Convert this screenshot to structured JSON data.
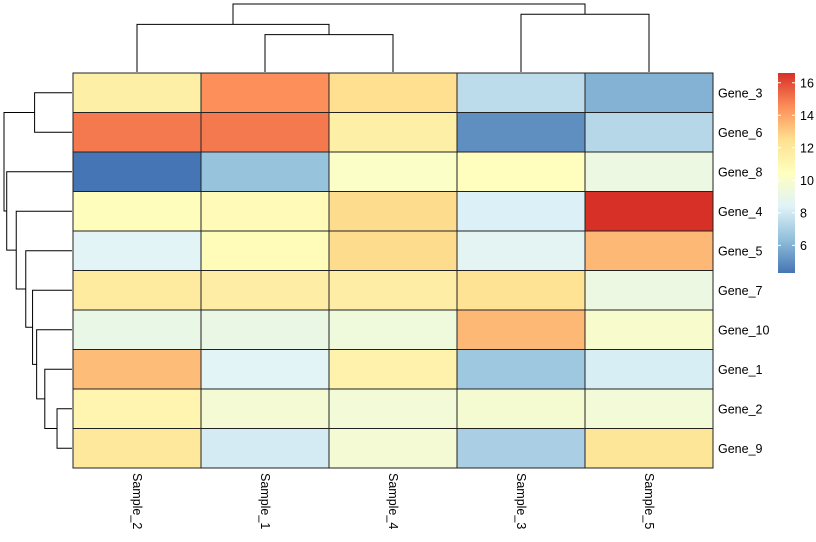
{
  "chart_data": {
    "type": "heatmap",
    "title": "",
    "rows": [
      "Gene_3",
      "Gene_6",
      "Gene_8",
      "Gene_4",
      "Gene_5",
      "Gene_7",
      "Gene_10",
      "Gene_1",
      "Gene_2",
      "Gene_9"
    ],
    "columns": [
      "Sample_2",
      "Sample_1",
      "Sample_4",
      "Sample_3",
      "Sample_5"
    ],
    "values": [
      [
        11.5,
        14.5,
        12.5,
        7.5,
        6.0
      ],
      [
        15.0,
        15.0,
        11.5,
        5.0,
        7.3
      ],
      [
        4.3,
        6.5,
        10.2,
        10.5,
        9.2
      ],
      [
        10.6,
        10.8,
        12.6,
        8.3,
        16.6
      ],
      [
        8.5,
        10.7,
        12.6,
        8.6,
        13.5
      ],
      [
        11.8,
        11.6,
        11.6,
        12.3,
        9.2
      ],
      [
        9.0,
        9.1,
        9.4,
        13.5,
        10.0
      ],
      [
        13.4,
        8.5,
        11.3,
        6.7,
        8.2
      ],
      [
        11.1,
        9.7,
        9.6,
        9.8,
        9.6
      ],
      [
        12.0,
        8.1,
        9.7,
        7.0,
        12.1
      ]
    ],
    "colorbar": {
      "ticks": [
        6,
        8,
        10,
        12,
        14,
        16
      ],
      "tick_labels": [
        "6",
        "8",
        "10",
        "12",
        "14",
        "16"
      ],
      "range": [
        4.3,
        16.6
      ],
      "colors": [
        "#4575B4",
        "#91BFDB",
        "#E0F3F8",
        "#FFFFBF",
        "#FEE090",
        "#FC8D59",
        "#D73027"
      ]
    },
    "row_dendrogram": {
      "nodes": [
        {
          "a": "r:Gene_3",
          "b": "r:Gene_6",
          "h": 0.55
        },
        {
          "a": "r:Gene_2",
          "b": "r:Gene_9",
          "h": 0.22
        },
        {
          "a": "r:Gene_1",
          "b": "n:1",
          "h": 0.4
        },
        {
          "a": "r:Gene_10",
          "b": "n:2",
          "h": 0.52
        },
        {
          "a": "r:Gene_7",
          "b": "n:3",
          "h": 0.58
        },
        {
          "a": "r:Gene_5",
          "b": "n:4",
          "h": 0.68
        },
        {
          "a": "r:Gene_4",
          "b": "n:5",
          "h": 0.82
        },
        {
          "a": "r:Gene_8",
          "b": "n:6",
          "h": 0.96
        },
        {
          "a": "n:0",
          "b": "n:7",
          "h": 1.0
        }
      ]
    },
    "col_dendrogram": {
      "nodes": [
        {
          "a": "c:Sample_1",
          "b": "c:Sample_4",
          "h": 0.55
        },
        {
          "a": "c:Sample_2",
          "b": "n:0",
          "h": 0.7
        },
        {
          "a": "c:Sample_3",
          "b": "c:Sample_5",
          "h": 0.85
        },
        {
          "a": "n:1",
          "b": "n:2",
          "h": 1.0
        }
      ]
    }
  }
}
